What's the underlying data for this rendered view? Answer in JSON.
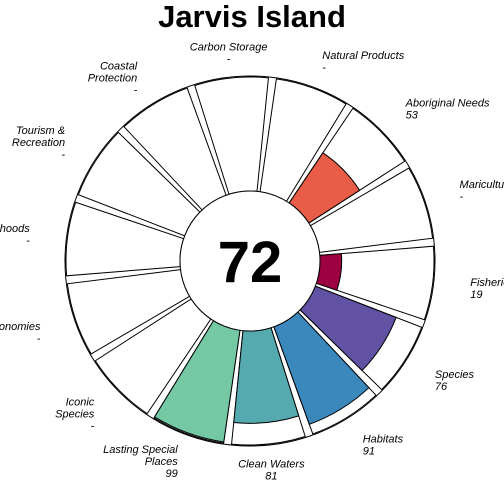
{
  "chart_data": {
    "type": "flower",
    "title": "Jarvis Island",
    "center_score": "72",
    "max_value": 100,
    "petals": [
      {
        "name": "Fisheries",
        "value": 19,
        "label_lines": [
          "Fisheries"
        ],
        "value_text": "19",
        "color": "#9e0142"
      },
      {
        "name": "Mariculture",
        "value": null,
        "label_lines": [
          "Mariculture"
        ],
        "value_text": "-",
        "color": null
      },
      {
        "name": "Aboriginal Needs",
        "value": 53,
        "label_lines": [
          "Aboriginal Needs"
        ],
        "value_text": "53",
        "color": "#e95c47"
      },
      {
        "name": "Natural Products",
        "value": null,
        "label_lines": [
          "Natural Products"
        ],
        "value_text": "-",
        "color": null
      },
      {
        "name": "Carbon Storage",
        "value": null,
        "label_lines": [
          "Carbon Storage"
        ],
        "value_text": "-",
        "color": null
      },
      {
        "name": "Coastal Protection",
        "value": null,
        "label_lines": [
          "Coastal",
          "Protection"
        ],
        "value_text": "-",
        "color": null
      },
      {
        "name": "Tourism & Recreation",
        "value": null,
        "label_lines": [
          "Tourism &",
          "Recreation"
        ],
        "value_text": "-",
        "color": null
      },
      {
        "name": "Livelihoods",
        "value": null,
        "label_lines": [
          "Livelihoods"
        ],
        "value_text": "-",
        "color": null
      },
      {
        "name": "Economies",
        "value": null,
        "label_lines": [
          "Economies"
        ],
        "value_text": "-",
        "color": null
      },
      {
        "name": "Iconic Species",
        "value": null,
        "label_lines": [
          "Iconic",
          "Species"
        ],
        "value_text": "-",
        "color": null
      },
      {
        "name": "Lasting Special Places",
        "value": 99,
        "label_lines": [
          "Lasting Special",
          "Places"
        ],
        "value_text": "99",
        "color": "#74c8a4"
      },
      {
        "name": "Clean Waters",
        "value": 81,
        "label_lines": [
          "Clean Waters"
        ],
        "value_text": "81",
        "color": "#55aab0"
      },
      {
        "name": "Habitats",
        "value": 91,
        "label_lines": [
          "Habitats"
        ],
        "value_text": "91",
        "color": "#3a88bc"
      },
      {
        "name": "Species",
        "value": 76,
        "label_lines": [
          "Species"
        ],
        "value_text": "76",
        "color": "#6152a3"
      }
    ]
  }
}
